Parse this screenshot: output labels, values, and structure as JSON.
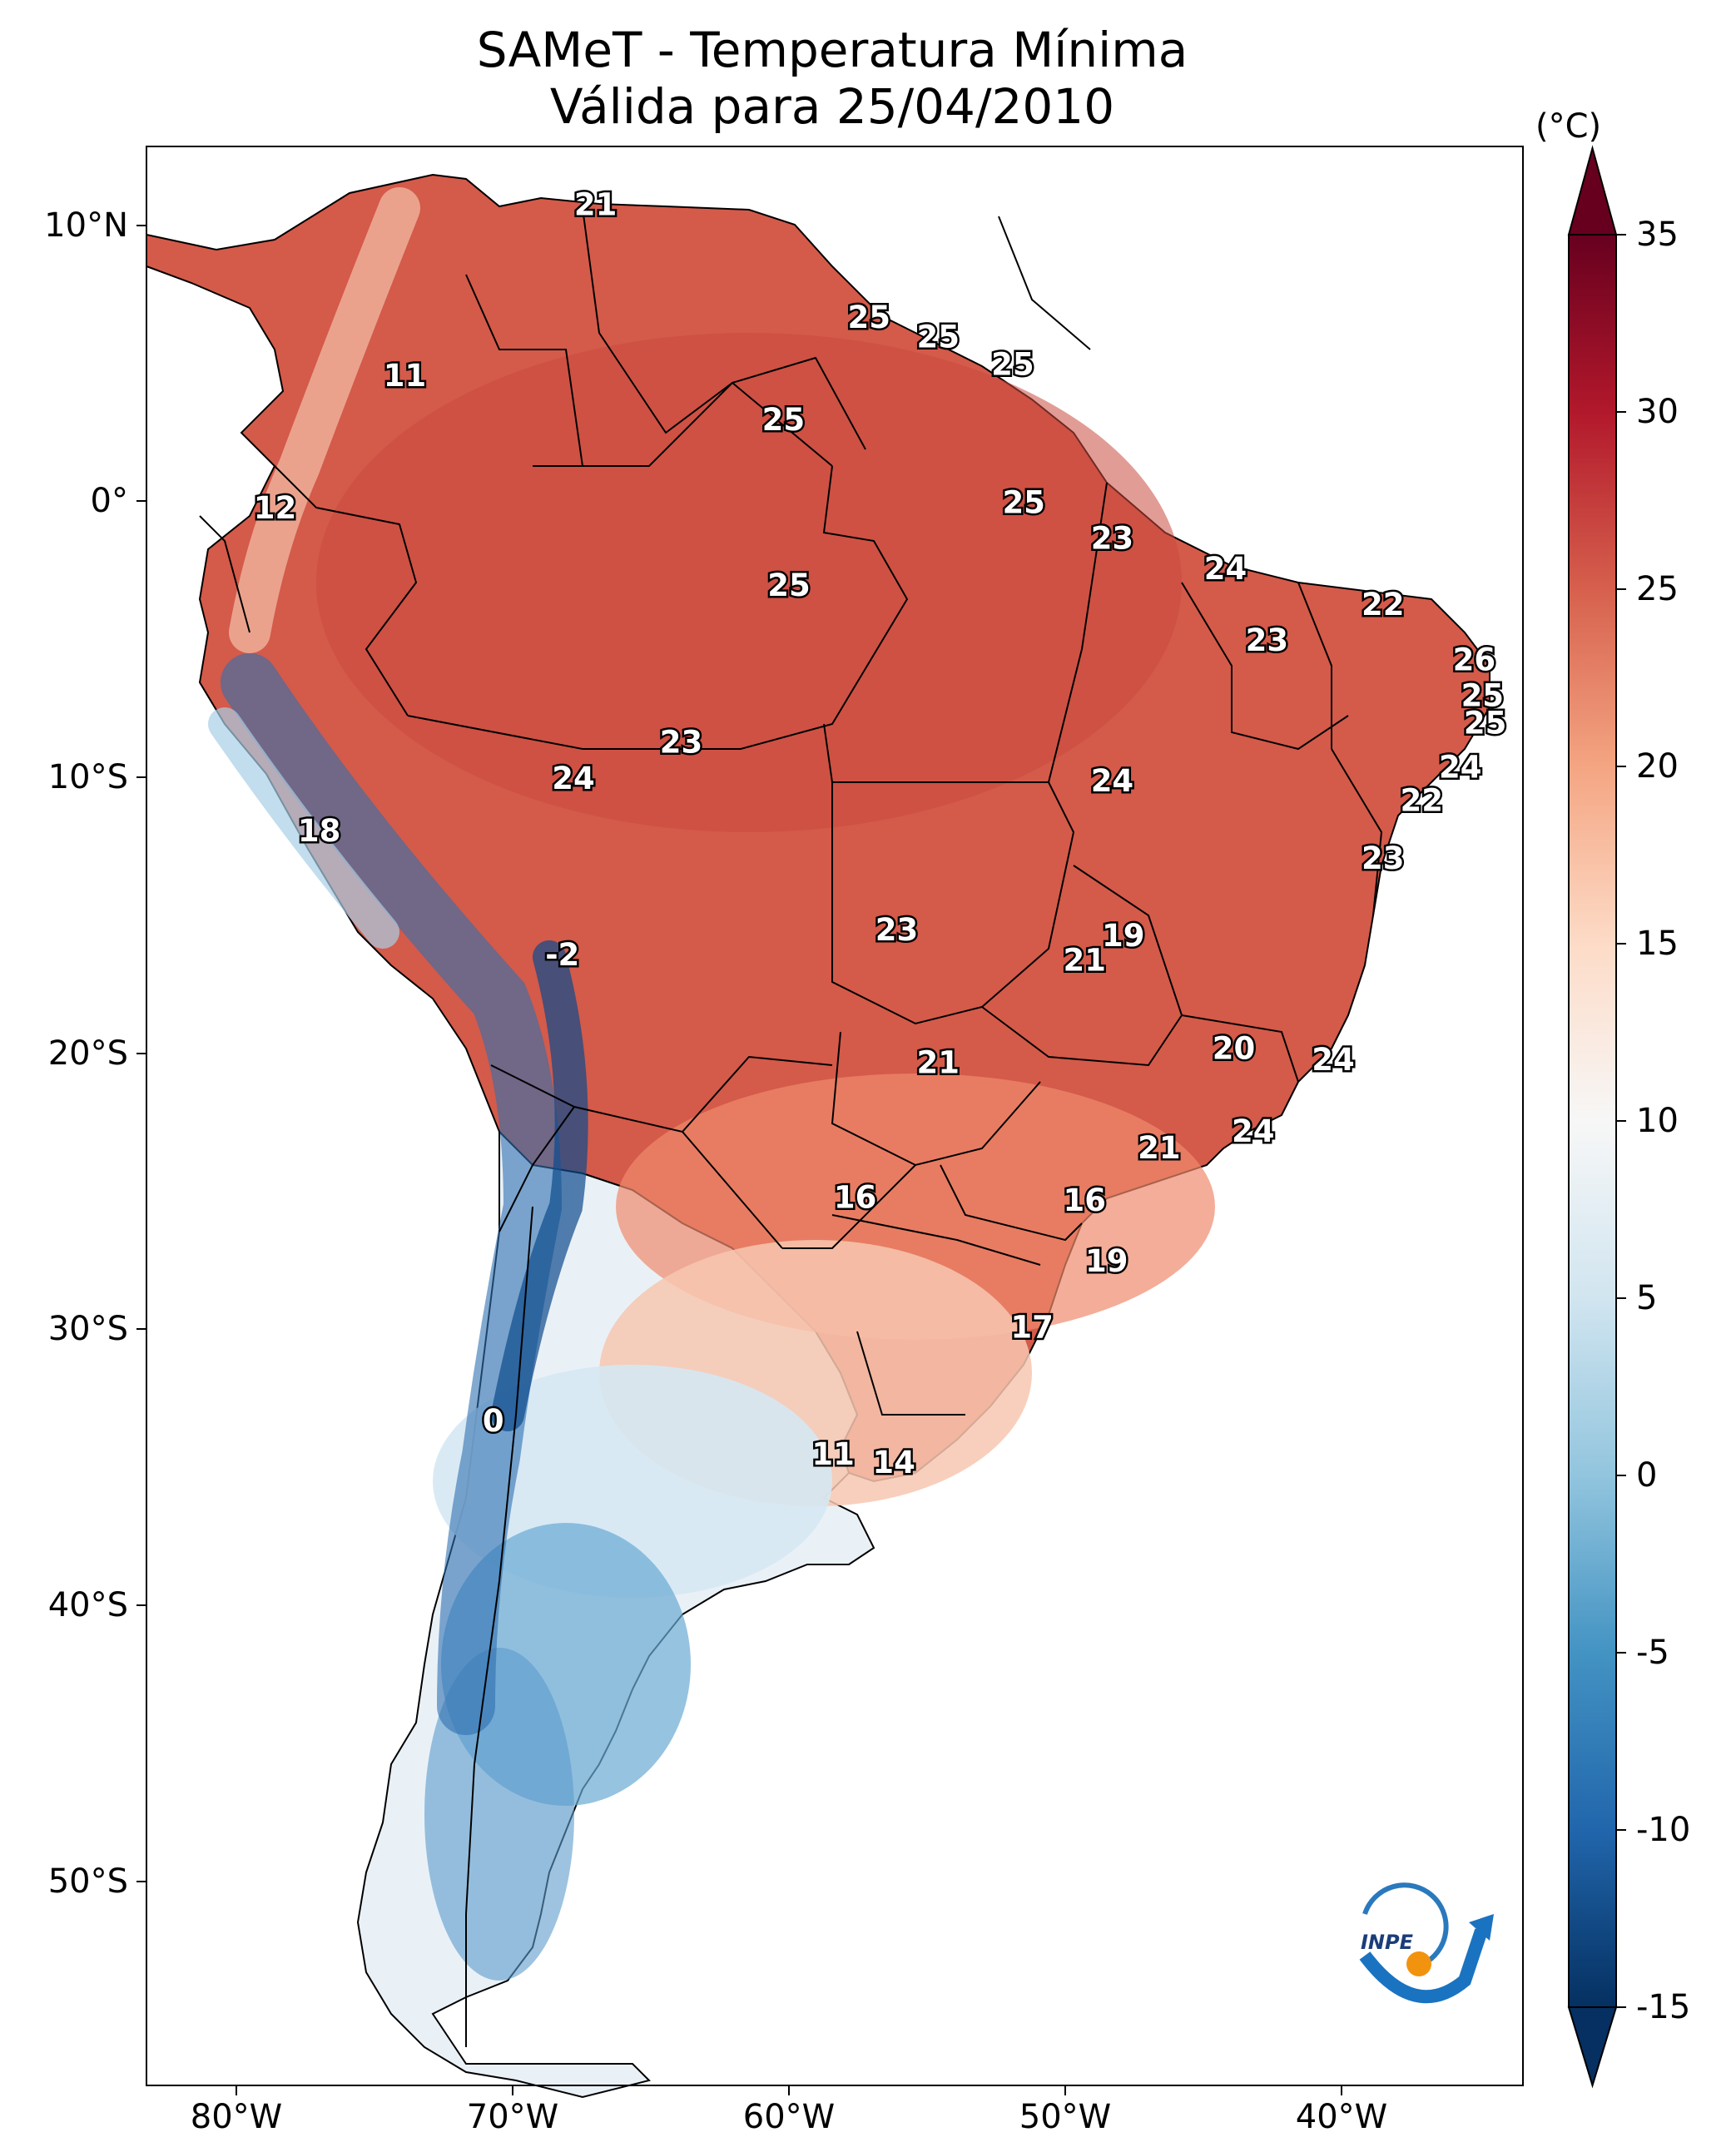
{
  "title": {
    "line1": "SAMeT - Temperatura Mínima",
    "line2": "Válida para 25/04/2010"
  },
  "map": {
    "lon_labels": [
      "80°W",
      "70°W",
      "60°W",
      "50°W",
      "40°W"
    ],
    "lat_labels": [
      "10°N",
      "0°",
      "10°S",
      "20°S",
      "30°S",
      "40°S",
      "50°S"
    ]
  },
  "colorbar": {
    "unit": "(°C)",
    "tick_labels": [
      "35",
      "30",
      "25",
      "20",
      "15",
      "10",
      "5",
      "0",
      "-5",
      "-10",
      "-15"
    ],
    "range": [
      -15,
      35
    ],
    "extend": "both",
    "colormap": [
      "#053061",
      "#2166ac",
      "#4393c3",
      "#92c5de",
      "#d1e5f0",
      "#f7f7f7",
      "#fddbc7",
      "#f4a582",
      "#d6604d",
      "#b2182b",
      "#67001f"
    ]
  },
  "station_values": [
    {
      "label": "21",
      "lon": -67.0,
      "lat": 10.7
    },
    {
      "label": "11",
      "lon": -73.9,
      "lat": 4.5
    },
    {
      "label": "25",
      "lon": -57.1,
      "lat": 6.6
    },
    {
      "label": "25",
      "lon": -54.6,
      "lat": 5.9
    },
    {
      "label": "25",
      "lon": -51.9,
      "lat": 4.9
    },
    {
      "label": "25",
      "lon": -60.2,
      "lat": 2.9
    },
    {
      "label": "12",
      "lon": -78.6,
      "lat": -0.3
    },
    {
      "label": "25",
      "lon": -51.5,
      "lat": -0.1
    },
    {
      "label": "23",
      "lon": -48.3,
      "lat": -1.4
    },
    {
      "label": "25",
      "lon": -60.0,
      "lat": -3.1
    },
    {
      "label": "24",
      "lon": -44.2,
      "lat": -2.5
    },
    {
      "label": "22",
      "lon": -38.5,
      "lat": -3.8
    },
    {
      "label": "23",
      "lon": -42.7,
      "lat": -5.1
    },
    {
      "label": "26",
      "lon": -35.2,
      "lat": -5.8
    },
    {
      "label": "25",
      "lon": -34.9,
      "lat": -7.1
    },
    {
      "label": "25",
      "lon": -34.8,
      "lat": -8.1
    },
    {
      "label": "23",
      "lon": -63.9,
      "lat": -8.8
    },
    {
      "label": "24",
      "lon": -67.8,
      "lat": -10.1
    },
    {
      "label": "24",
      "lon": -48.3,
      "lat": -10.2
    },
    {
      "label": "24",
      "lon": -35.7,
      "lat": -9.7
    },
    {
      "label": "22",
      "lon": -37.1,
      "lat": -10.9
    },
    {
      "label": "18",
      "lon": -77.0,
      "lat": -12.0
    },
    {
      "label": "23",
      "lon": -38.5,
      "lat": -13.0
    },
    {
      "label": "23",
      "lon": -56.1,
      "lat": -15.6
    },
    {
      "label": "19",
      "lon": -47.9,
      "lat": -15.8
    },
    {
      "label": "21",
      "lon": -49.3,
      "lat": -16.7
    },
    {
      "label": "-2",
      "lon": -68.2,
      "lat": -16.5
    },
    {
      "label": "20",
      "lon": -43.9,
      "lat": -19.9
    },
    {
      "label": "24",
      "lon": -40.3,
      "lat": -20.3
    },
    {
      "label": "21",
      "lon": -54.6,
      "lat": -20.4
    },
    {
      "label": "24",
      "lon": -43.2,
      "lat": -22.9
    },
    {
      "label": "21",
      "lon": -46.6,
      "lat": -23.5
    },
    {
      "label": "16",
      "lon": -57.6,
      "lat": -25.3
    },
    {
      "label": "16",
      "lon": -49.3,
      "lat": -25.4
    },
    {
      "label": "19",
      "lon": -48.5,
      "lat": -27.6
    },
    {
      "label": "17",
      "lon": -51.2,
      "lat": -30.0
    },
    {
      "label": "0",
      "lon": -70.7,
      "lat": -33.4
    },
    {
      "label": "11",
      "lon": -58.4,
      "lat": -34.6
    },
    {
      "label": "14",
      "lon": -56.2,
      "lat": -34.9
    }
  ],
  "logo": {
    "text": "INPE"
  }
}
